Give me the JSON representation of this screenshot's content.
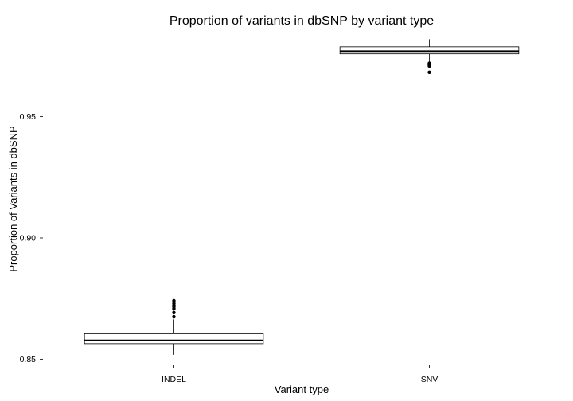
{
  "chart_data": {
    "type": "boxplot",
    "title": "Proportion of variants in dbSNP by variant type",
    "xlabel": "Variant type",
    "ylabel": "Proportion of Variants in dbSNP",
    "ylim": [
      0.8475,
      0.984
    ],
    "yticks": [
      0.85,
      0.9,
      0.95
    ],
    "ytick_labels": [
      "0.85",
      "0.90",
      "0.95"
    ],
    "grid": false,
    "categories": [
      "INDEL",
      "SNV"
    ],
    "boxes": [
      {
        "category": "INDEL",
        "whisker_low": 0.8518,
        "q1": 0.8564,
        "median": 0.8578,
        "q3": 0.8605,
        "whisker_high": 0.8664,
        "outliers": [
          0.8675,
          0.8692,
          0.8708,
          0.8716,
          0.8722,
          0.873,
          0.8741
        ]
      },
      {
        "category": "SNV",
        "whisker_low": 0.972,
        "q1": 0.9759,
        "median": 0.977,
        "q3": 0.9788,
        "whisker_high": 0.9819,
        "outliers": [
          0.9709,
          0.9713,
          0.9716,
          0.972,
          0.9683
        ]
      }
    ]
  }
}
